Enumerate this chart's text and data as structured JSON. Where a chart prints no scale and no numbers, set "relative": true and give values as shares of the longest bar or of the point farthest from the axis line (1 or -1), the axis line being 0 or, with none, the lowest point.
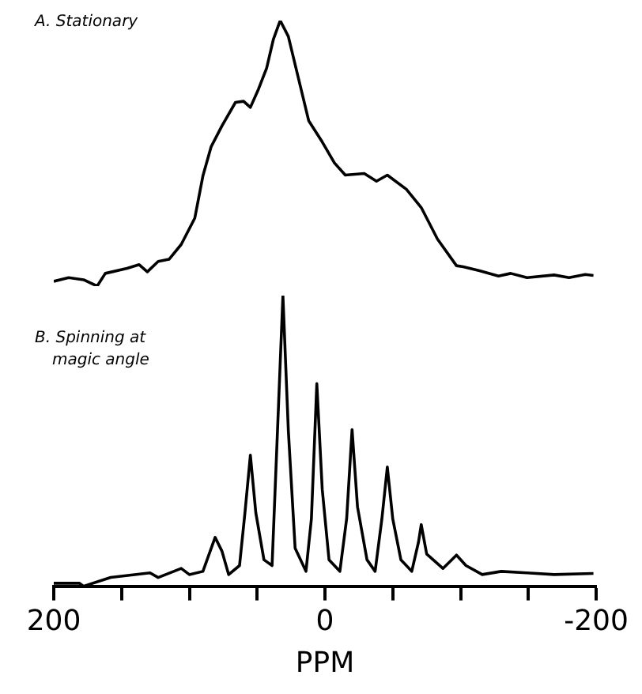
{
  "chart_data": [
    {
      "type": "line",
      "title": "A. Stationary",
      "color": "#000000",
      "marker": "none",
      "relative": true,
      "xlim": [
        200,
        -200
      ],
      "tick_labels": false,
      "x": [
        200,
        189,
        178,
        168,
        162,
        146,
        137,
        131,
        123,
        115,
        106,
        96,
        90,
        84,
        76,
        66,
        60,
        55,
        49,
        43,
        38,
        33,
        27,
        20,
        12,
        2,
        -7,
        -15,
        -29,
        -38,
        -46,
        -60,
        -71,
        -83,
        -97,
        -102,
        -114,
        -128,
        -137,
        -149,
        -169,
        -180,
        -192,
        -198
      ],
      "values": [
        0.018,
        0.032,
        0.024,
        0,
        0.048,
        0.067,
        0.081,
        0.054,
        0.093,
        0.101,
        0.157,
        0.256,
        0.415,
        0.524,
        0.603,
        0.692,
        0.696,
        0.673,
        0.742,
        0.821,
        0.93,
        1,
        0.94,
        0.792,
        0.623,
        0.543,
        0.464,
        0.418,
        0.424,
        0.395,
        0.418,
        0.365,
        0.296,
        0.177,
        0.077,
        0.073,
        0.058,
        0.038,
        0.048,
        0.032,
        0.042,
        0.032,
        0.044,
        0.04
      ]
    },
    {
      "type": "line",
      "title": "B. Spinning at magic angle",
      "xlabel": "PPM",
      "color": "#000000",
      "marker": "none",
      "relative": true,
      "xlim": [
        200,
        -200
      ],
      "tick_labels": "x",
      "xticks": [
        200,
        {
          "value": 150,
          "label": null
        },
        {
          "value": 100,
          "label": null
        },
        {
          "value": 50,
          "label": null
        },
        0,
        {
          "value": -50,
          "label": null
        },
        {
          "value": -100,
          "label": null
        },
        {
          "value": -150,
          "label": null
        },
        -200
      ],
      "x": [
        200,
        181,
        178,
        158,
        129,
        123,
        106,
        100,
        90,
        81,
        76,
        71,
        63,
        59,
        55,
        51,
        45,
        39,
        35,
        31,
        27,
        22,
        14,
        10,
        6,
        2,
        -3,
        -11,
        -16,
        -20,
        -24,
        -31,
        -37,
        -42,
        -46,
        -50,
        -56,
        -64,
        -69,
        -71,
        -75,
        -87,
        -97,
        -104,
        -116,
        -130,
        -149,
        -169,
        -198
      ],
      "values": [
        0.01,
        0.01,
        0,
        0.03,
        0.046,
        0.03,
        0.061,
        0.04,
        0.051,
        0.168,
        0.121,
        0.04,
        0.071,
        0.253,
        0.451,
        0.253,
        0.091,
        0.071,
        0.535,
        1,
        0.535,
        0.131,
        0.051,
        0.232,
        0.697,
        0.333,
        0.091,
        0.051,
        0.232,
        0.539,
        0.273,
        0.091,
        0.051,
        0.232,
        0.41,
        0.232,
        0.091,
        0.051,
        0.152,
        0.212,
        0.111,
        0.061,
        0.107,
        0.071,
        0.04,
        0.051,
        0.046,
        0.04,
        0.044
      ]
    }
  ]
}
